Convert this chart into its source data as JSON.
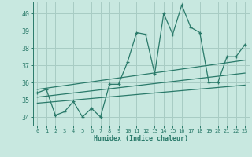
{
  "title": "",
  "xlabel": "Humidex (Indice chaleur)",
  "bg_color": "#c8e8e0",
  "grid_color": "#a8ccc4",
  "line_color": "#2a7a6a",
  "xlim": [
    -0.5,
    23.5
  ],
  "ylim": [
    33.5,
    40.7
  ],
  "xticks": [
    0,
    1,
    2,
    3,
    4,
    5,
    6,
    7,
    8,
    9,
    10,
    11,
    12,
    13,
    14,
    15,
    16,
    17,
    18,
    19,
    20,
    21,
    22,
    23
  ],
  "yticks": [
    34,
    35,
    36,
    37,
    38,
    39,
    40
  ],
  "main_x": [
    0,
    1,
    2,
    3,
    4,
    5,
    6,
    7,
    8,
    9,
    10,
    11,
    12,
    13,
    14,
    15,
    16,
    17,
    18,
    19,
    20,
    21,
    22,
    23
  ],
  "main_y": [
    35.4,
    35.6,
    34.1,
    34.3,
    34.9,
    34.0,
    34.5,
    34.0,
    35.9,
    35.9,
    37.2,
    38.9,
    38.8,
    36.5,
    40.0,
    38.8,
    40.5,
    39.2,
    38.9,
    36.0,
    36.0,
    37.5,
    37.5,
    38.2
  ],
  "trend1_x": [
    0,
    23
  ],
  "trend1_y": [
    35.6,
    37.3
  ],
  "trend2_x": [
    0,
    23
  ],
  "trend2_y": [
    34.8,
    35.85
  ],
  "trend3_x": [
    0,
    23
  ],
  "trend3_y": [
    35.15,
    36.55
  ]
}
